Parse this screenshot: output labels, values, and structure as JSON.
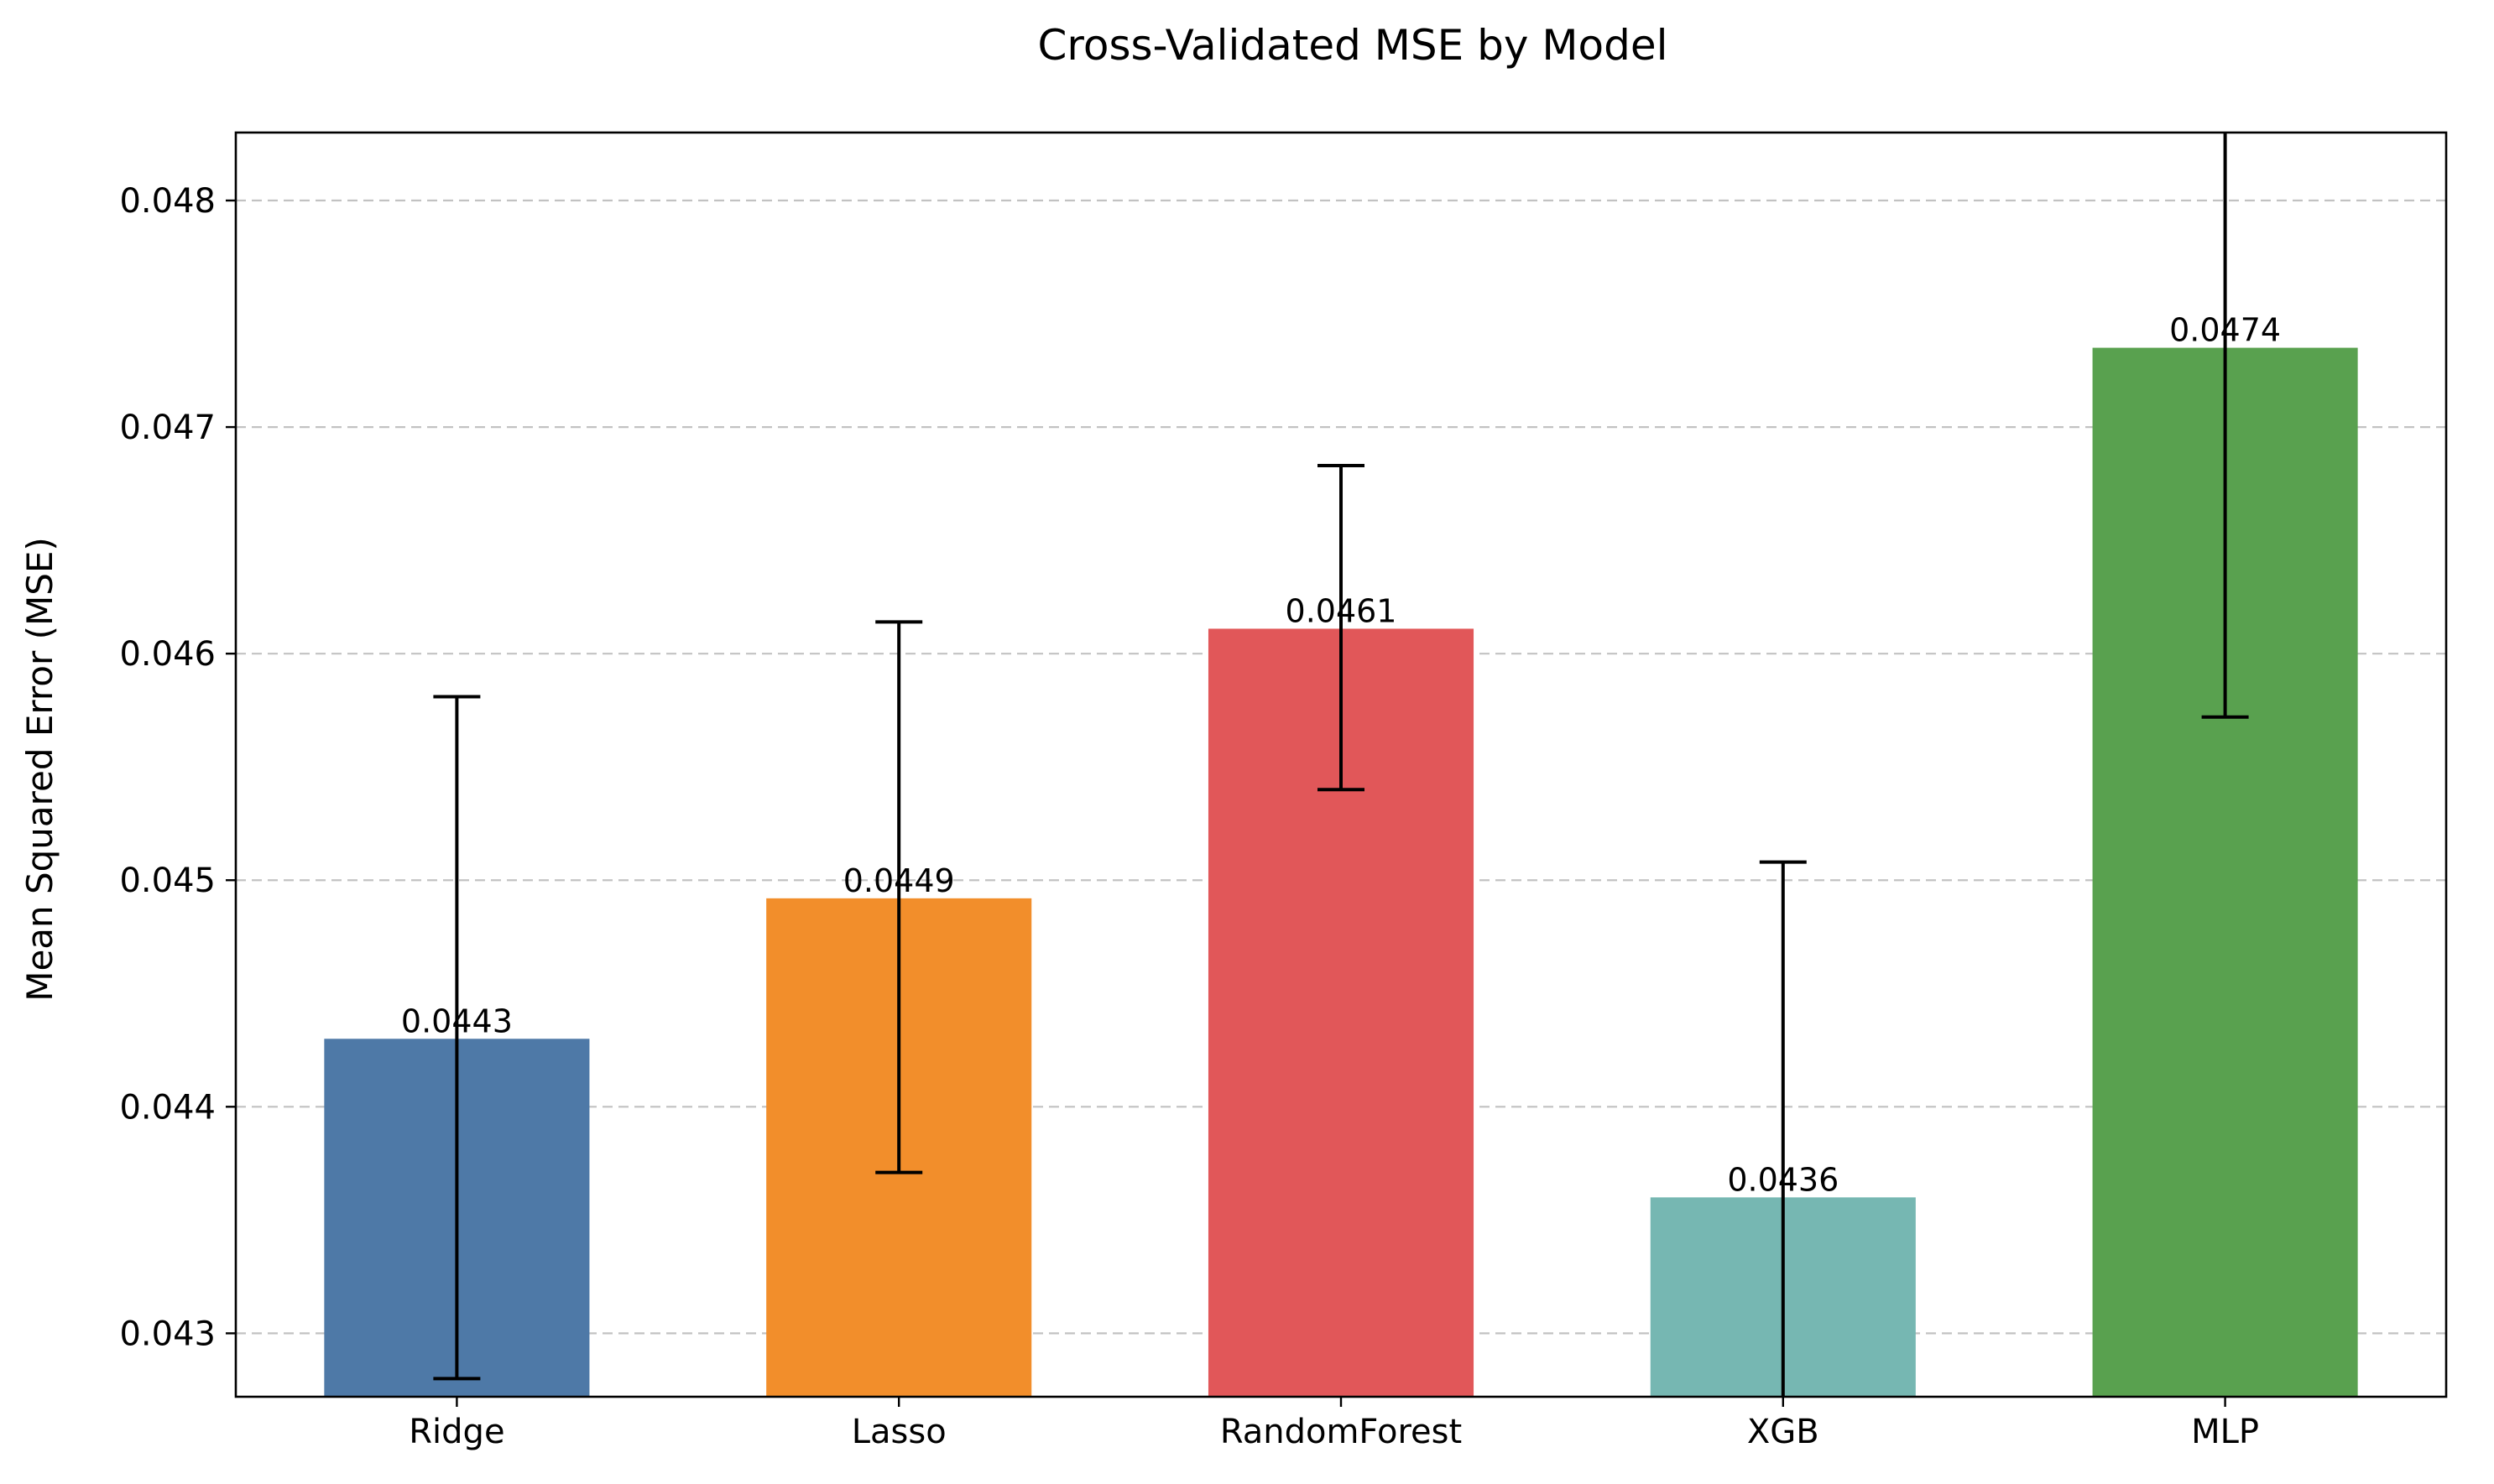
{
  "chart_data": {
    "type": "bar",
    "title": "Cross-Validated MSE by Model",
    "xlabel": "",
    "ylabel": "Mean Squared Error (MSE)",
    "categories": [
      "Ridge",
      "Lasso",
      "RandomForest",
      "XGB",
      "MLP"
    ],
    "values": [
      0.0443,
      0.04492,
      0.04611,
      0.0436,
      0.04735
    ],
    "value_labels": [
      "0.0443",
      "0.0449",
      "0.0461",
      "0.0436",
      "0.0474"
    ],
    "error_bars": {
      "lower": [
        0.0428,
        0.04371,
        0.0454,
        0.04212,
        0.04572
      ],
      "upper": [
        0.04581,
        0.04614,
        0.04683,
        0.04508,
        0.04898
      ]
    },
    "colors": [
      "#4e79a7",
      "#f28e2b",
      "#e15759",
      "#76b7b2",
      "#59a14f"
    ],
    "ylim": [
      0.04272,
      0.0483
    ],
    "yticks": [
      0.043,
      0.044,
      0.045,
      0.046,
      0.047,
      0.048
    ],
    "ytick_labels": [
      "0.043",
      "0.044",
      "0.045",
      "0.046",
      "0.047",
      "0.048"
    ],
    "grid": "y-dashed",
    "legend": "none"
  }
}
